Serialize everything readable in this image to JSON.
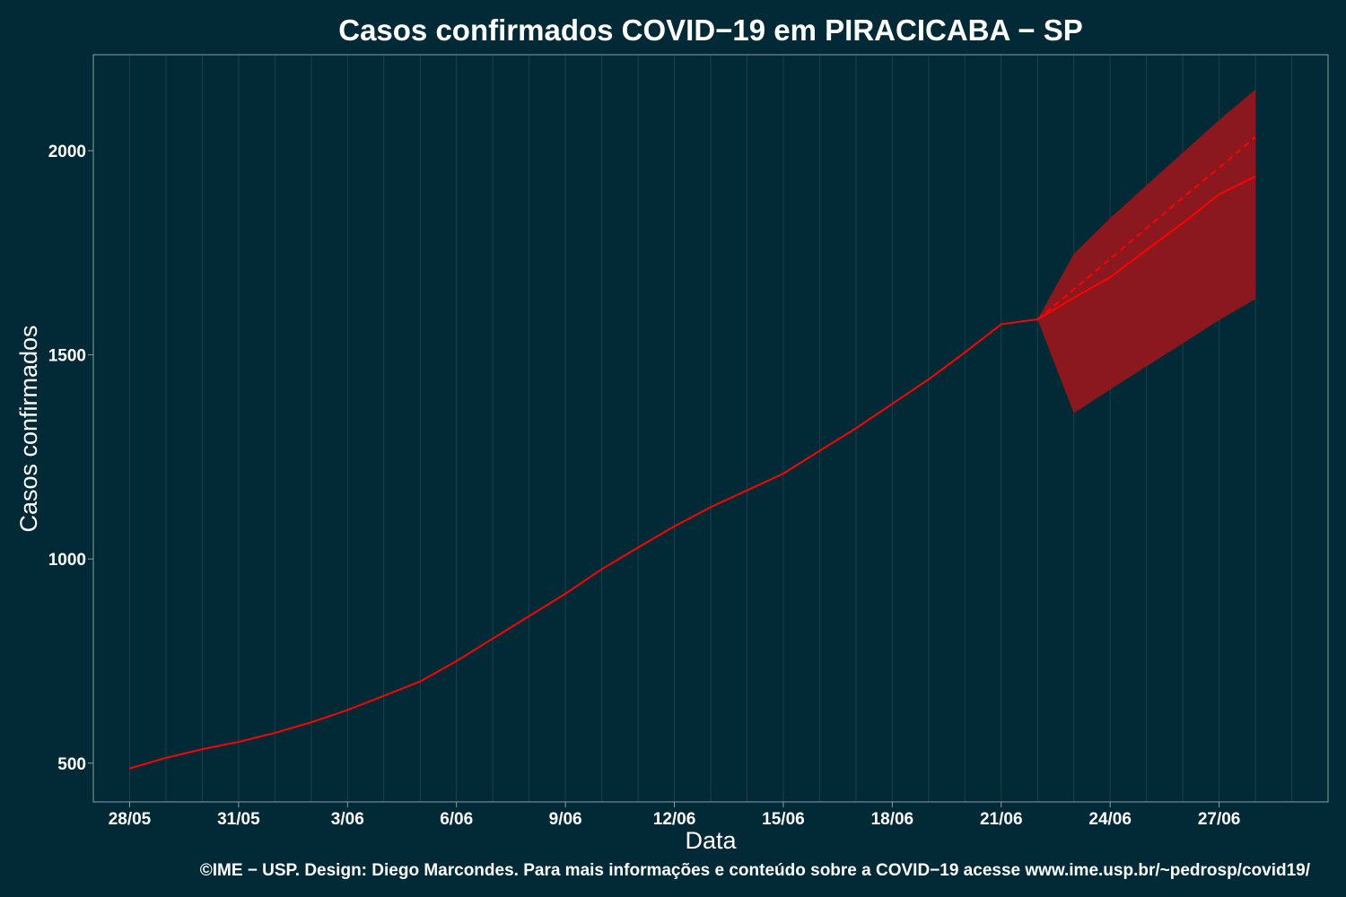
{
  "chart_data": {
    "type": "line",
    "title": "Casos confirmados COVID−19 em PIRACICABA − SP",
    "xlabel": "Data",
    "ylabel": "Casos confirmados",
    "caption": "©IME − USP. Design: Diego Marcondes. Para mais informações e conteúdo sobre a COVID−19 acesse www.ime.usp.br/~pedrosp/covid19/",
    "x_ticks": [
      "28/05",
      "31/05",
      "3/06",
      "6/06",
      "9/06",
      "12/06",
      "15/06",
      "18/06",
      "21/06",
      "24/06",
      "27/06"
    ],
    "y_ticks": [
      500,
      1000,
      1500,
      2000
    ],
    "ylim": [
      405,
      2235
    ],
    "x_range": [
      "27/05",
      "30/06"
    ],
    "grid": true,
    "colors": {
      "background": "#022a36",
      "line": "#ff0000",
      "band": "#8b181e",
      "grid": "#1d3f49",
      "axis": "#8a9ea4"
    },
    "series": [
      {
        "style": "solid",
        "x": [
          "28/05",
          "29/05",
          "30/05",
          "31/05",
          "01/06",
          "02/06",
          "03/06",
          "04/06",
          "05/06",
          "06/06",
          "07/06",
          "08/06",
          "09/06",
          "10/06",
          "11/06",
          "12/06",
          "13/06",
          "14/06",
          "15/06",
          "16/06",
          "17/06",
          "18/06",
          "19/06",
          "20/06",
          "21/06",
          "22/06"
        ],
        "values": [
          487,
          513,
          534,
          552,
          574,
          600,
          630,
          665,
          700,
          750,
          805,
          860,
          915,
          975,
          1028,
          1080,
          1127,
          1168,
          1209,
          1265,
          1320,
          1380,
          1440,
          1506,
          1575,
          1587
        ]
      },
      {
        "style": "solid",
        "x": [
          "22/06",
          "23/06",
          "24/06",
          "25/06",
          "26/06",
          "27/06",
          "28/06"
        ],
        "values": [
          1587,
          1640,
          1690,
          1757,
          1823,
          1893,
          1937
        ]
      },
      {
        "style": "dashed",
        "x": [
          "22/06",
          "23/06",
          "24/06",
          "25/06",
          "26/06",
          "27/06",
          "28/06"
        ],
        "values": [
          1587,
          1660,
          1735,
          1810,
          1885,
          1958,
          2033
        ]
      }
    ],
    "band": {
      "x": [
        "22/06",
        "23/06",
        "24/06",
        "25/06",
        "26/06",
        "27/06",
        "28/06"
      ],
      "upper": [
        1587,
        1747,
        1835,
        1915,
        1995,
        2075,
        2150
      ],
      "lower": [
        1587,
        1357,
        1415,
        1472,
        1528,
        1585,
        1637
      ]
    }
  }
}
